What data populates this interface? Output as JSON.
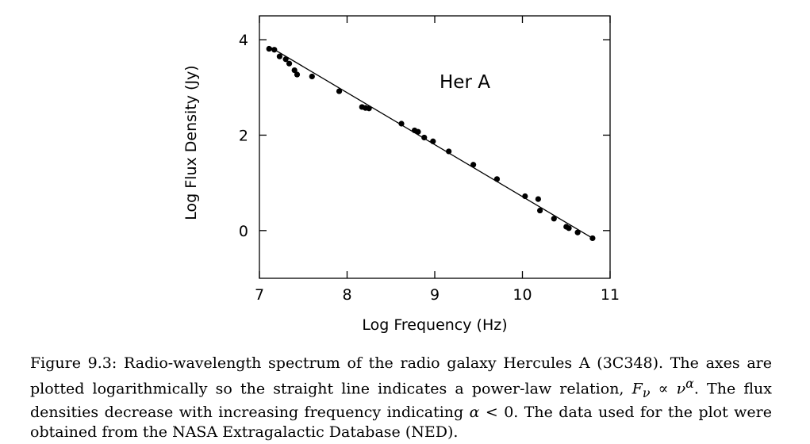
{
  "chart_data": {
    "type": "scatter",
    "xlabel": "Log Frequency (Hz)",
    "ylabel": "Log Flux Density (Jy)",
    "annotation": "Her A",
    "xlim": [
      7,
      11
    ],
    "ylim": [
      -1,
      4.5
    ],
    "xticks": [
      7,
      8,
      9,
      10,
      11
    ],
    "yticks": [
      0,
      2,
      4
    ],
    "grid": false,
    "points": [
      {
        "x": 7.11,
        "y": 3.81
      },
      {
        "x": 7.17,
        "y": 3.79
      },
      {
        "x": 7.23,
        "y": 3.65
      },
      {
        "x": 7.3,
        "y": 3.59
      },
      {
        "x": 7.34,
        "y": 3.5
      },
      {
        "x": 7.4,
        "y": 3.36
      },
      {
        "x": 7.43,
        "y": 3.27
      },
      {
        "x": 7.6,
        "y": 3.23
      },
      {
        "x": 7.91,
        "y": 2.92
      },
      {
        "x": 8.17,
        "y": 2.59
      },
      {
        "x": 8.21,
        "y": 2.57
      },
      {
        "x": 8.25,
        "y": 2.56
      },
      {
        "x": 8.62,
        "y": 2.24
      },
      {
        "x": 8.77,
        "y": 2.1
      },
      {
        "x": 8.81,
        "y": 2.07
      },
      {
        "x": 8.88,
        "y": 1.95
      },
      {
        "x": 8.98,
        "y": 1.87
      },
      {
        "x": 9.16,
        "y": 1.66
      },
      {
        "x": 9.44,
        "y": 1.38
      },
      {
        "x": 9.71,
        "y": 1.08
      },
      {
        "x": 10.03,
        "y": 0.72
      },
      {
        "x": 10.18,
        "y": 0.66
      },
      {
        "x": 10.2,
        "y": 0.42
      },
      {
        "x": 10.36,
        "y": 0.25
      },
      {
        "x": 10.5,
        "y": 0.08
      },
      {
        "x": 10.53,
        "y": 0.05
      },
      {
        "x": 10.63,
        "y": -0.04
      },
      {
        "x": 10.8,
        "y": -0.16
      }
    ],
    "fit_line": {
      "x": [
        7.11,
        10.8
      ],
      "y": [
        3.86,
        -0.16
      ]
    }
  },
  "caption": {
    "label": "Figure 9.3:",
    "text1": "Radio-wavelength spectrum of the radio galaxy Hercules A (3C348). The axes are plotted logarithmically so the straight line indicates a power-law relation, ",
    "math1": "F",
    "math1_sub": "ν",
    "math2": " ∝ ν",
    "math2_sup": "α",
    "text2": ". The flux densities decrease with increasing frequency indicating ",
    "math3": "α",
    "text3": " < 0. The data used for the plot were obtained from the NASA Extragalactic Database (NED)."
  }
}
